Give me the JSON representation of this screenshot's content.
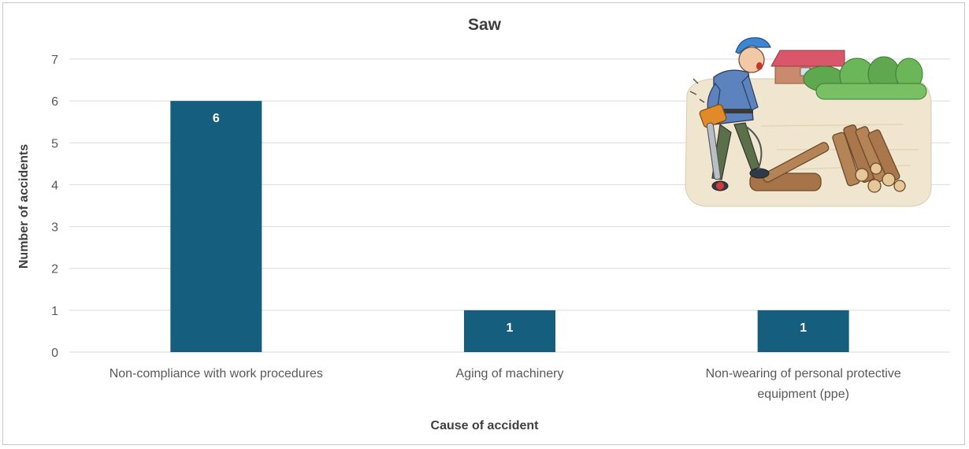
{
  "chart_data": {
    "type": "bar",
    "title": "Saw",
    "xlabel": "Cause of accident",
    "ylabel": "Number of accidents",
    "categories": [
      [
        "Non-compliance with work procedures"
      ],
      [
        "Aging of machinery"
      ],
      [
        "Non-wearing of personal protective",
        "equipment (ppe)"
      ]
    ],
    "values": [
      6,
      1,
      1
    ],
    "data_labels": [
      "6",
      "1",
      "1"
    ],
    "yticks": [
      "0",
      "1",
      "2",
      "3",
      "4",
      "5",
      "6",
      "7"
    ],
    "ylim": [
      0,
      7
    ],
    "grid": true,
    "legend": "none",
    "bar_color": "#155e7e",
    "data_label_color": "#ffffff",
    "grid_color": "#d9d9d9",
    "text_color": "#595959"
  },
  "illustration": {
    "icon": "worker-with-chainsaw-illustration"
  }
}
